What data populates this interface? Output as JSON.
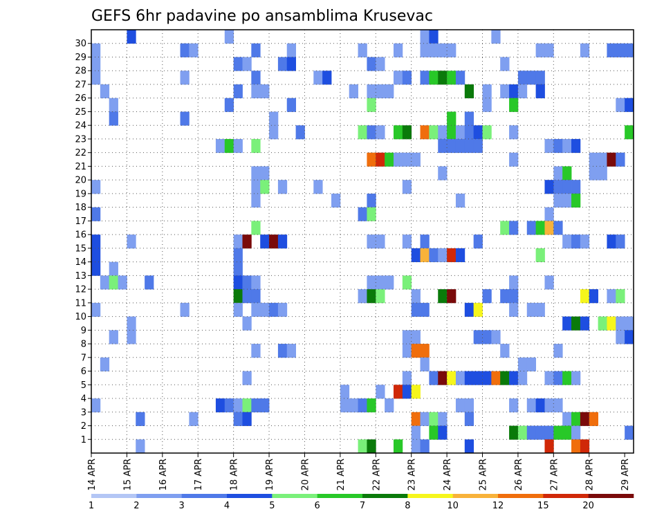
{
  "title": "GEFS 6hr padavine po ansamblima Krusevac",
  "chart_data": {
    "type": "heatmap",
    "title": "GEFS 6hr padavine po ansamblima Krusevac",
    "x_ticks": [
      "14 APR",
      "15 APR",
      "16 APR",
      "17 APR",
      "18 APR",
      "19 APR",
      "20 APR",
      "21 APR",
      "22 APR",
      "23 APR",
      "24 APR",
      "25 APR",
      "26 APR",
      "27 APR",
      "28 APR",
      "29 APR"
    ],
    "y_ticks": [
      1,
      2,
      3,
      4,
      5,
      6,
      7,
      8,
      9,
      10,
      11,
      12,
      13,
      14,
      15,
      16,
      17,
      18,
      19,
      20,
      21,
      22,
      23,
      24,
      25,
      26,
      27,
      28,
      29,
      30
    ],
    "x_columns": 61,
    "y_rows": 31,
    "grid": true,
    "colorbar": {
      "labels": [
        "1",
        "2",
        "3",
        "4",
        "5",
        "6",
        "7",
        "8",
        "10",
        "12",
        "15",
        "20"
      ],
      "colors": [
        "#b3c6f5",
        "#7f9ff0",
        "#4f79e8",
        "#1e4ee0",
        "#7af07a",
        "#28c828",
        "#0a7a0a",
        "#f6f61c",
        "#f8b23a",
        "#f06e0c",
        "#d02808",
        "#7a0a0a"
      ]
    },
    "cells": [
      [
        4,
        30,
        3
      ],
      [
        15,
        30,
        1
      ],
      [
        37,
        30,
        1
      ],
      [
        38,
        30,
        3
      ],
      [
        45,
        30,
        1
      ],
      [
        0,
        29,
        1
      ],
      [
        10,
        29,
        2
      ],
      [
        11,
        29,
        1
      ],
      [
        18,
        29,
        2
      ],
      [
        22,
        29,
        1
      ],
      [
        30,
        29,
        1
      ],
      [
        34,
        29,
        1
      ],
      [
        37,
        29,
        1
      ],
      [
        38,
        29,
        1
      ],
      [
        39,
        29,
        1
      ],
      [
        40,
        29,
        1
      ],
      [
        50,
        29,
        1
      ],
      [
        51,
        29,
        1
      ],
      [
        55,
        29,
        1
      ],
      [
        58,
        29,
        2
      ],
      [
        59,
        29,
        2
      ],
      [
        60,
        29,
        2
      ],
      [
        0,
        28,
        1
      ],
      [
        16,
        28,
        2
      ],
      [
        17,
        28,
        1
      ],
      [
        21,
        28,
        2
      ],
      [
        22,
        28,
        3
      ],
      [
        31,
        28,
        2
      ],
      [
        32,
        28,
        1
      ],
      [
        46,
        28,
        1
      ],
      [
        0,
        27,
        1
      ],
      [
        10,
        27,
        1
      ],
      [
        18,
        27,
        2
      ],
      [
        25,
        27,
        1
      ],
      [
        26,
        27,
        3
      ],
      [
        34,
        27,
        1
      ],
      [
        35,
        27,
        2
      ],
      [
        37,
        27,
        2
      ],
      [
        38,
        27,
        5
      ],
      [
        39,
        27,
        6
      ],
      [
        40,
        27,
        5
      ],
      [
        41,
        27,
        2
      ],
      [
        48,
        27,
        2
      ],
      [
        49,
        27,
        2
      ],
      [
        50,
        27,
        2
      ],
      [
        1,
        26,
        1
      ],
      [
        16,
        26,
        2
      ],
      [
        18,
        26,
        1
      ],
      [
        19,
        26,
        1
      ],
      [
        29,
        26,
        1
      ],
      [
        31,
        26,
        1
      ],
      [
        32,
        26,
        1
      ],
      [
        33,
        26,
        1
      ],
      [
        42,
        26,
        6
      ],
      [
        44,
        26,
        1
      ],
      [
        46,
        26,
        1
      ],
      [
        47,
        26,
        3
      ],
      [
        48,
        26,
        1
      ],
      [
        50,
        26,
        3
      ],
      [
        2,
        25,
        1
      ],
      [
        15,
        25,
        2
      ],
      [
        22,
        25,
        2
      ],
      [
        31,
        25,
        4
      ],
      [
        44,
        25,
        1
      ],
      [
        47,
        25,
        5
      ],
      [
        59,
        25,
        1
      ],
      [
        60,
        25,
        3
      ],
      [
        2,
        24,
        2
      ],
      [
        10,
        24,
        2
      ],
      [
        20,
        24,
        1
      ],
      [
        40,
        24,
        5
      ],
      [
        42,
        24,
        2
      ],
      [
        20,
        23,
        1
      ],
      [
        23,
        23,
        2
      ],
      [
        30,
        23,
        4
      ],
      [
        31,
        23,
        2
      ],
      [
        32,
        23,
        1
      ],
      [
        34,
        23,
        5
      ],
      [
        35,
        23,
        6
      ],
      [
        37,
        23,
        9
      ],
      [
        38,
        23,
        4
      ],
      [
        39,
        23,
        1
      ],
      [
        40,
        23,
        5
      ],
      [
        41,
        23,
        1
      ],
      [
        42,
        23,
        2
      ],
      [
        43,
        23,
        3
      ],
      [
        44,
        23,
        4
      ],
      [
        47,
        23,
        1
      ],
      [
        60,
        23,
        5
      ],
      [
        14,
        22,
        1
      ],
      [
        15,
        22,
        5
      ],
      [
        16,
        22,
        1
      ],
      [
        18,
        22,
        4
      ],
      [
        39,
        22,
        2
      ],
      [
        40,
        22,
        2
      ],
      [
        41,
        22,
        2
      ],
      [
        42,
        22,
        2
      ],
      [
        43,
        22,
        2
      ],
      [
        51,
        22,
        1
      ],
      [
        52,
        22,
        2
      ],
      [
        53,
        22,
        1
      ],
      [
        54,
        22,
        3
      ],
      [
        31,
        21,
        9
      ],
      [
        32,
        21,
        10
      ],
      [
        33,
        21,
        5
      ],
      [
        34,
        21,
        1
      ],
      [
        35,
        21,
        1
      ],
      [
        36,
        21,
        1
      ],
      [
        47,
        21,
        1
      ],
      [
        56,
        21,
        1
      ],
      [
        57,
        21,
        1
      ],
      [
        58,
        21,
        11
      ],
      [
        59,
        21,
        2
      ],
      [
        18,
        20,
        1
      ],
      [
        19,
        20,
        1
      ],
      [
        39,
        20,
        1
      ],
      [
        52,
        20,
        1
      ],
      [
        53,
        20,
        5
      ],
      [
        56,
        20,
        1
      ],
      [
        57,
        20,
        1
      ],
      [
        0,
        19,
        1
      ],
      [
        18,
        19,
        1
      ],
      [
        19,
        19,
        4
      ],
      [
        21,
        19,
        1
      ],
      [
        25,
        19,
        1
      ],
      [
        35,
        19,
        1
      ],
      [
        51,
        19,
        3
      ],
      [
        52,
        19,
        2
      ],
      [
        53,
        19,
        2
      ],
      [
        54,
        19,
        2
      ],
      [
        18,
        18,
        1
      ],
      [
        27,
        18,
        1
      ],
      [
        31,
        18,
        2
      ],
      [
        41,
        18,
        1
      ],
      [
        52,
        18,
        1
      ],
      [
        53,
        18,
        1
      ],
      [
        54,
        18,
        5
      ],
      [
        0,
        17,
        2
      ],
      [
        30,
        17,
        2
      ],
      [
        31,
        17,
        4
      ],
      [
        51,
        17,
        1
      ],
      [
        18,
        16,
        4
      ],
      [
        46,
        16,
        4
      ],
      [
        47,
        16,
        2
      ],
      [
        49,
        16,
        2
      ],
      [
        50,
        16,
        5
      ],
      [
        51,
        16,
        8
      ],
      [
        52,
        16,
        2
      ],
      [
        0,
        15,
        3
      ],
      [
        4,
        15,
        1
      ],
      [
        16,
        15,
        1
      ],
      [
        17,
        15,
        11
      ],
      [
        19,
        15,
        3
      ],
      [
        20,
        15,
        11
      ],
      [
        21,
        15,
        3
      ],
      [
        31,
        15,
        1
      ],
      [
        32,
        15,
        1
      ],
      [
        35,
        15,
        1
      ],
      [
        37,
        15,
        2
      ],
      [
        43,
        15,
        2
      ],
      [
        53,
        15,
        1
      ],
      [
        54,
        15,
        2
      ],
      [
        55,
        15,
        1
      ],
      [
        58,
        15,
        3
      ],
      [
        59,
        15,
        2
      ],
      [
        0,
        14,
        3
      ],
      [
        16,
        14,
        2
      ],
      [
        36,
        14,
        3
      ],
      [
        37,
        14,
        8
      ],
      [
        38,
        14,
        2
      ],
      [
        39,
        14,
        1
      ],
      [
        40,
        14,
        10
      ],
      [
        41,
        14,
        3
      ],
      [
        50,
        14,
        4
      ],
      [
        0,
        13,
        3
      ],
      [
        2,
        13,
        1
      ],
      [
        16,
        13,
        2
      ],
      [
        1,
        12,
        1
      ],
      [
        2,
        12,
        4
      ],
      [
        3,
        12,
        1
      ],
      [
        6,
        12,
        2
      ],
      [
        16,
        12,
        3
      ],
      [
        17,
        12,
        2
      ],
      [
        18,
        12,
        1
      ],
      [
        31,
        12,
        1
      ],
      [
        32,
        12,
        1
      ],
      [
        33,
        12,
        1
      ],
      [
        35,
        12,
        4
      ],
      [
        47,
        12,
        1
      ],
      [
        51,
        12,
        1
      ],
      [
        16,
        11,
        6
      ],
      [
        17,
        11,
        2
      ],
      [
        18,
        11,
        2
      ],
      [
        30,
        11,
        1
      ],
      [
        31,
        11,
        6
      ],
      [
        32,
        11,
        4
      ],
      [
        36,
        11,
        1
      ],
      [
        39,
        11,
        6
      ],
      [
        40,
        11,
        11
      ],
      [
        44,
        11,
        2
      ],
      [
        46,
        11,
        2
      ],
      [
        47,
        11,
        2
      ],
      [
        55,
        11,
        7
      ],
      [
        56,
        11,
        3
      ],
      [
        58,
        11,
        1
      ],
      [
        59,
        11,
        4
      ],
      [
        0,
        10,
        1
      ],
      [
        10,
        10,
        1
      ],
      [
        16,
        10,
        1
      ],
      [
        18,
        10,
        1
      ],
      [
        19,
        10,
        1
      ],
      [
        20,
        10,
        2
      ],
      [
        21,
        10,
        1
      ],
      [
        36,
        10,
        2
      ],
      [
        37,
        10,
        2
      ],
      [
        42,
        10,
        3
      ],
      [
        43,
        10,
        7
      ],
      [
        47,
        10,
        1
      ],
      [
        49,
        10,
        1
      ],
      [
        50,
        10,
        1
      ],
      [
        4,
        9,
        1
      ],
      [
        17,
        9,
        1
      ],
      [
        53,
        9,
        3
      ],
      [
        54,
        9,
        6
      ],
      [
        55,
        9,
        3
      ],
      [
        57,
        9,
        4
      ],
      [
        58,
        9,
        7
      ],
      [
        59,
        9,
        1
      ],
      [
        60,
        9,
        1
      ],
      [
        2,
        8,
        1
      ],
      [
        4,
        8,
        1
      ],
      [
        35,
        8,
        1
      ],
      [
        36,
        8,
        1
      ],
      [
        43,
        8,
        2
      ],
      [
        44,
        8,
        2
      ],
      [
        45,
        8,
        1
      ],
      [
        59,
        8,
        1
      ],
      [
        60,
        8,
        3
      ],
      [
        18,
        7,
        1
      ],
      [
        21,
        7,
        2
      ],
      [
        22,
        7,
        1
      ],
      [
        35,
        7,
        1
      ],
      [
        36,
        7,
        9
      ],
      [
        37,
        7,
        9
      ],
      [
        46,
        7,
        1
      ],
      [
        52,
        7,
        1
      ],
      [
        1,
        6,
        1
      ],
      [
        37,
        6,
        1
      ],
      [
        48,
        6,
        1
      ],
      [
        49,
        6,
        1
      ],
      [
        17,
        5,
        1
      ],
      [
        35,
        5,
        1
      ],
      [
        38,
        5,
        2
      ],
      [
        39,
        5,
        11
      ],
      [
        40,
        5,
        7
      ],
      [
        41,
        5,
        1
      ],
      [
        42,
        5,
        3
      ],
      [
        43,
        5,
        3
      ],
      [
        44,
        5,
        3
      ],
      [
        45,
        5,
        9
      ],
      [
        46,
        5,
        6
      ],
      [
        47,
        5,
        3
      ],
      [
        48,
        5,
        1
      ],
      [
        51,
        5,
        1
      ],
      [
        52,
        5,
        2
      ],
      [
        53,
        5,
        5
      ],
      [
        54,
        5,
        1
      ],
      [
        28,
        4,
        1
      ],
      [
        32,
        4,
        1
      ],
      [
        34,
        4,
        10
      ],
      [
        35,
        4,
        3
      ],
      [
        36,
        4,
        7
      ],
      [
        0,
        3,
        1
      ],
      [
        14,
        3,
        3
      ],
      [
        15,
        3,
        2
      ],
      [
        16,
        3,
        1
      ],
      [
        17,
        3,
        4
      ],
      [
        18,
        3,
        2
      ],
      [
        19,
        3,
        2
      ],
      [
        28,
        3,
        1
      ],
      [
        29,
        3,
        1
      ],
      [
        30,
        3,
        2
      ],
      [
        31,
        3,
        5
      ],
      [
        33,
        3,
        1
      ],
      [
        41,
        3,
        1
      ],
      [
        42,
        3,
        1
      ],
      [
        47,
        3,
        1
      ],
      [
        49,
        3,
        1
      ],
      [
        50,
        3,
        3
      ],
      [
        51,
        3,
        1
      ],
      [
        52,
        3,
        1
      ],
      [
        5,
        2,
        2
      ],
      [
        11,
        2,
        1
      ],
      [
        16,
        2,
        2
      ],
      [
        17,
        2,
        3
      ],
      [
        36,
        2,
        9
      ],
      [
        37,
        2,
        1
      ],
      [
        38,
        2,
        4
      ],
      [
        39,
        2,
        1
      ],
      [
        42,
        2,
        2
      ],
      [
        53,
        2,
        1
      ],
      [
        54,
        2,
        5
      ],
      [
        55,
        2,
        11
      ],
      [
        56,
        2,
        9
      ],
      [
        36,
        1,
        1
      ],
      [
        38,
        1,
        5
      ],
      [
        39,
        1,
        3
      ],
      [
        47,
        1,
        6
      ],
      [
        48,
        1,
        4
      ],
      [
        49,
        1,
        2
      ],
      [
        50,
        1,
        2
      ],
      [
        51,
        1,
        2
      ],
      [
        52,
        1,
        5
      ],
      [
        53,
        1,
        5
      ],
      [
        54,
        1,
        1
      ],
      [
        60,
        1,
        2
      ],
      [
        5,
        0,
        1
      ],
      [
        30,
        0,
        4
      ],
      [
        31,
        0,
        6
      ],
      [
        34,
        0,
        5
      ],
      [
        36,
        0,
        1
      ],
      [
        37,
        0,
        2
      ],
      [
        42,
        0,
        3
      ],
      [
        51,
        0,
        10
      ],
      [
        54,
        0,
        9
      ],
      [
        55,
        0,
        10
      ]
    ]
  }
}
